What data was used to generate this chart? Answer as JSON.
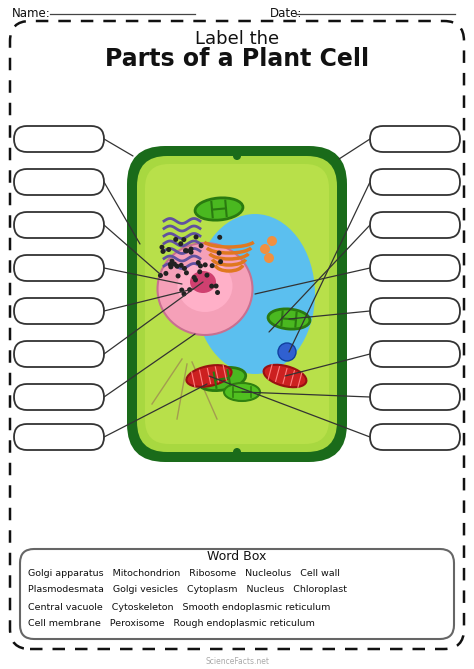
{
  "title_line1": "Label the",
  "title_line2": "Parts of a Plant Cell",
  "name_label": "Name:",
  "date_label": "Date:",
  "word_box_title": "Word Box",
  "word_box_lines": [
    "Golgi apparatus   Mitochondrion   Ribosome   Nucleolus   Cell wall",
    "Plasmodesmata   Golgi vesicles   Cytoplasm   Nucleus   Chloroplast",
    "Central vacuole   Cytoskeleton   Smooth endoplasmic reticulum",
    "Cell membrane   Peroxisome   Rough endoplasmic reticulum"
  ],
  "bg_color": "#ffffff",
  "dashed_border_color": "#222222",
  "cell_wall_color": "#1a6b1a",
  "cell_inner_wall_color": "#2d8c2d",
  "cell_fill_color": "#b8e04a",
  "vacuole_color": "#5bbfef",
  "nucleus_outer_color": "#f5a0b8",
  "nucleus_glow_color": "#ff80a0",
  "nucleolus_color": "#d04070",
  "chloroplast_outer": "#2a7a10",
  "chloroplast_inner": "#4ab820",
  "mitochondria_outer": "#cc2020",
  "mitochondria_inner": "#ff5050",
  "golgi_color": "#e07820",
  "golgi_vesicle": "#f09040",
  "ribosome_color": "#222222",
  "er_color": "#6050a0",
  "er_rough_color": "#8070c0",
  "peroxisome_color": "#50c020",
  "cytoskeleton_color": "#a09050",
  "blue_dot_color": "#3060d0",
  "watermark": "ScienceFacts.net"
}
